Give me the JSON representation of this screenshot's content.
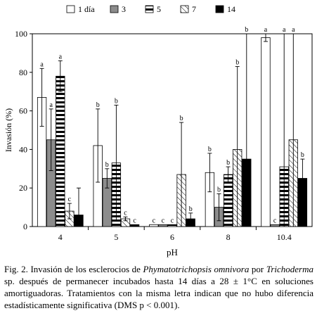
{
  "chart_data": {
    "type": "bar",
    "ylabel": "Invasión (%)",
    "xlabel": "pH",
    "ylim": [
      0,
      100
    ],
    "yticks": [
      0,
      20,
      40,
      60,
      80,
      100
    ],
    "grid": false,
    "legend_position": "top-right",
    "categories": [
      "4",
      "5",
      "6",
      "8",
      "10.4"
    ],
    "series": [
      {
        "name": "1 día",
        "pattern": "white",
        "values": [
          67,
          42,
          1,
          28,
          98
        ],
        "errors": [
          15,
          19,
          0,
          10,
          2
        ],
        "letters": [
          "a",
          "b",
          "c",
          "b",
          "a"
        ]
      },
      {
        "name": "3",
        "pattern": "gray",
        "values": [
          45,
          25,
          1,
          10,
          1
        ],
        "errors": [
          16,
          5,
          0,
          7,
          0
        ],
        "letters": [
          "a",
          "b",
          "c",
          "b",
          "c"
        ]
      },
      {
        "name": "5",
        "pattern": "black-bars",
        "values": [
          78,
          33,
          1,
          27,
          31
        ],
        "errors": [
          8,
          30,
          0,
          4,
          69
        ],
        "letters": [
          "a",
          "b",
          "c",
          "b",
          "a"
        ]
      },
      {
        "name": "7",
        "pattern": "hatched",
        "values": [
          8,
          4,
          27,
          40,
          45
        ],
        "errors": [
          4,
          1,
          27,
          43,
          55
        ],
        "letters": [
          "c",
          "c",
          "b",
          "b",
          "a"
        ]
      },
      {
        "name": "14",
        "pattern": "black",
        "values": [
          6,
          1,
          4,
          35,
          25
        ],
        "errors": [
          14,
          0,
          3,
          65,
          10
        ],
        "letters": [
          "",
          "c",
          "b",
          "b",
          "b"
        ]
      }
    ]
  },
  "caption": {
    "prefix": "Fig. 2. Invasión de los esclerocios de ",
    "species1": "Phymatotrichopsis omnivora",
    "middle1": " por ",
    "species2": "Trichoderma",
    "rest": " sp. después de permanecer incubados hasta 14 días a 28 ± 1°C en soluciones amortiguadoras. Tratamientos con la misma letra indican que no hubo diferencia estadísticamente significativa (DMS  p < 0.001)."
  }
}
